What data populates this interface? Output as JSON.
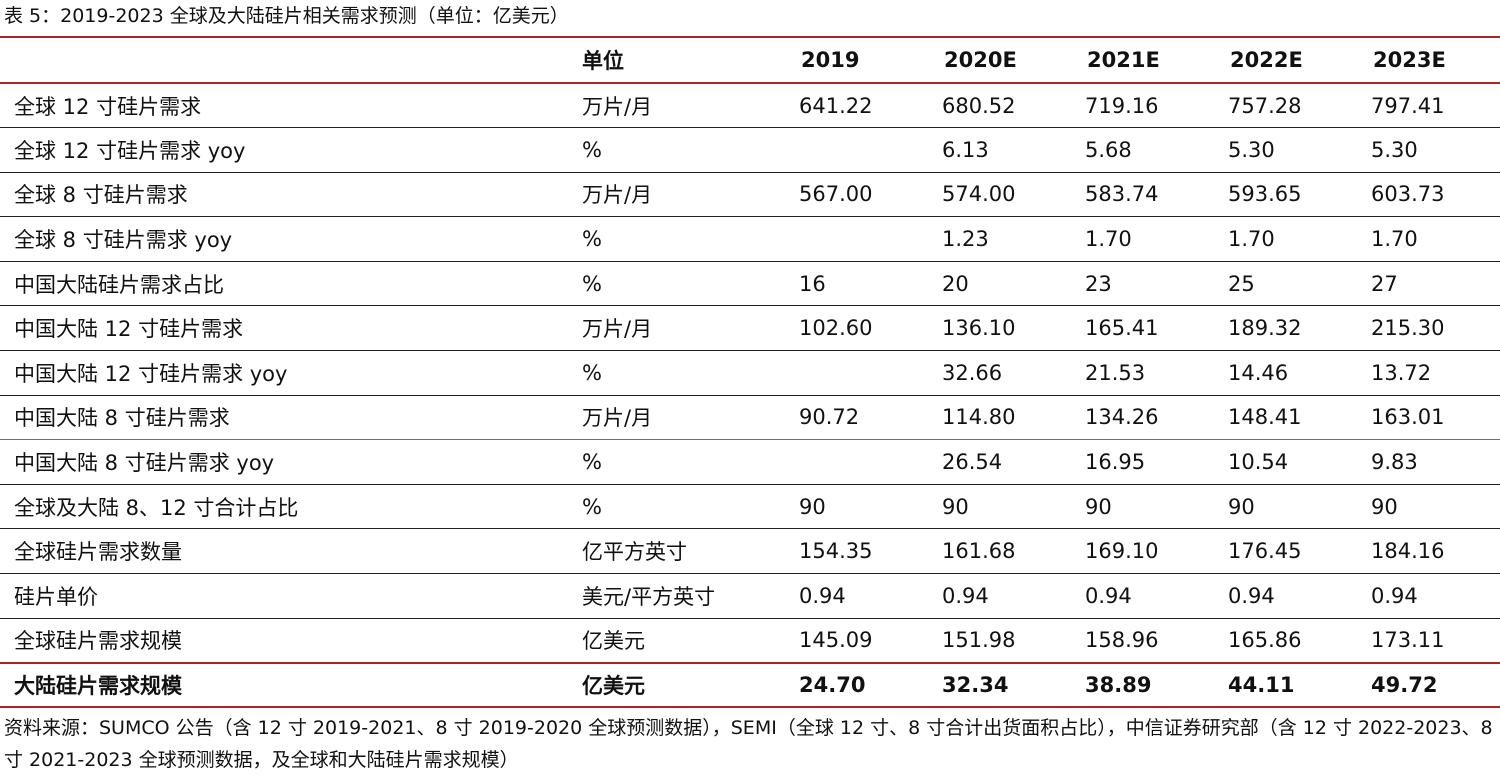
{
  "caption": "表 5：2019-2023 全球及大陆硅片相关需求预测（单位：亿美元）",
  "table": {
    "headers": [
      "",
      "单位",
      "2019",
      "2020E",
      "2021E",
      "2022E",
      "2023E"
    ],
    "rows": [
      [
        "全球 12 寸硅片需求",
        "万片/月",
        "641.22",
        "680.52",
        "719.16",
        "757.28",
        "797.41"
      ],
      [
        "全球 12 寸硅片需求 yoy",
        "%",
        "",
        "6.13",
        "5.68",
        "5.30",
        "5.30"
      ],
      [
        "全球 8 寸硅片需求",
        "万片/月",
        "567.00",
        "574.00",
        "583.74",
        "593.65",
        "603.73"
      ],
      [
        "全球 8 寸硅片需求 yoy",
        "%",
        "",
        "1.23",
        "1.70",
        "1.70",
        "1.70"
      ],
      [
        "中国大陆硅片需求占比",
        "%",
        "16",
        "20",
        "23",
        "25",
        "27"
      ],
      [
        "中国大陆 12 寸硅片需求",
        "万片/月",
        "102.60",
        "136.10",
        "165.41",
        "189.32",
        "215.30"
      ],
      [
        "中国大陆 12 寸硅片需求 yoy",
        "%",
        "",
        "32.66",
        "21.53",
        "14.46",
        "13.72"
      ],
      [
        "中国大陆 8 寸硅片需求",
        "万片/月",
        "90.72",
        "114.80",
        "134.26",
        "148.41",
        "163.01"
      ],
      [
        "中国大陆 8 寸硅片需求 yoy",
        "%",
        "",
        "26.54",
        "16.95",
        "10.54",
        "9.83"
      ],
      [
        "全球及大陆 8、12 寸合计占比",
        "%",
        "90",
        "90",
        "90",
        "90",
        "90"
      ],
      [
        "全球硅片需求数量",
        "亿平方英寸",
        "154.35",
        "161.68",
        "169.10",
        "176.45",
        "184.16"
      ],
      [
        "硅片单价",
        "美元/平方英寸",
        "0.94",
        "0.94",
        "0.94",
        "0.94",
        "0.94"
      ],
      [
        "全球硅片需求规模",
        "亿美元",
        "145.09",
        "151.98",
        "158.96",
        "165.86",
        "173.11"
      ],
      [
        "大陆硅片需求规模",
        "亿美元",
        "24.70",
        "32.34",
        "38.89",
        "44.11",
        "49.72"
      ]
    ]
  },
  "source": "资料来源：SUMCO 公告（含 12 寸 2019-2021、8 寸 2019-2020 全球预测数据），SEMI（全球 12 寸、8 寸合计出货面积占比），中信证券研究部（含 12 寸 2022-2023、8 寸 2021-2023 全球预测数据，及全球和大陆硅片需求规模）",
  "colors": {
    "rule_red": "#b22222",
    "rule_dark": "#222222"
  }
}
